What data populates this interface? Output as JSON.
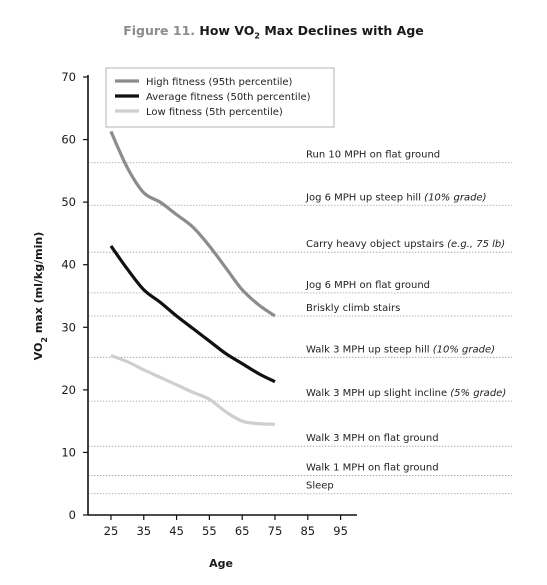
{
  "title": {
    "prefix": "Figure 11.",
    "main": "How VO",
    "sub": "2",
    "rest": " Max Declines with Age"
  },
  "chart_data": {
    "type": "line",
    "xlabel": "Age",
    "ylabel": {
      "a": "VO",
      "sub": "2",
      "b": " max (ml/kg/min)"
    },
    "xlim": [
      18,
      100
    ],
    "ylim": [
      0,
      70
    ],
    "x_ticks": [
      25,
      35,
      45,
      55,
      65,
      75,
      85,
      95
    ],
    "y_ticks": [
      0,
      10,
      20,
      30,
      40,
      50,
      60,
      70
    ],
    "legend_position": "top-left",
    "series": [
      {
        "name": "High fitness (95th percentile)",
        "color": "#8c8c8c",
        "x": [
          25,
          30,
          35,
          40,
          45,
          50,
          55,
          60,
          65,
          70,
          75
        ],
        "y": [
          61.3,
          55.5,
          51.5,
          50.0,
          48.0,
          46.0,
          43.0,
          39.5,
          36.0,
          33.6,
          31.8
        ]
      },
      {
        "name": "Average fitness (50th percentile)",
        "color": "#111111",
        "x": [
          25,
          30,
          35,
          40,
          45,
          50,
          55,
          60,
          65,
          70,
          75
        ],
        "y": [
          43.0,
          39.3,
          36.0,
          34.0,
          31.8,
          29.8,
          27.8,
          25.8,
          24.2,
          22.6,
          21.3
        ]
      },
      {
        "name": "Low fitness (5th percentile)",
        "color": "#cfcfcf",
        "x": [
          25,
          30,
          35,
          40,
          45,
          50,
          55,
          60,
          65,
          70,
          75
        ],
        "y": [
          25.5,
          24.5,
          23.2,
          22.0,
          20.8,
          19.6,
          18.5,
          16.5,
          15.0,
          14.6,
          14.5
        ]
      }
    ],
    "activities": [
      {
        "y": 56.3,
        "text": "Run 10 MPH on flat ground",
        "note": ""
      },
      {
        "y": 49.5,
        "text": "Jog 6 MPH up steep hill ",
        "note": "(10% grade)"
      },
      {
        "y": 42.0,
        "text": "Carry heavy object upstairs ",
        "note": "(e.g., 75 lb)"
      },
      {
        "y": 35.5,
        "text": "Jog 6 MPH on flat ground",
        "note": ""
      },
      {
        "y": 31.8,
        "text": "Briskly climb stairs",
        "note": ""
      },
      {
        "y": 25.2,
        "text": "Walk 3 MPH up steep hill ",
        "note": "(10% grade)"
      },
      {
        "y": 18.2,
        "text": "Walk 3 MPH up slight incline ",
        "note": "(5% grade)"
      },
      {
        "y": 11.0,
        "text": "Walk 3 MPH on flat ground",
        "note": ""
      },
      {
        "y": 6.3,
        "text": "Walk 1 MPH on flat ground",
        "note": ""
      },
      {
        "y": 3.4,
        "text": "Sleep",
        "note": ""
      }
    ]
  }
}
